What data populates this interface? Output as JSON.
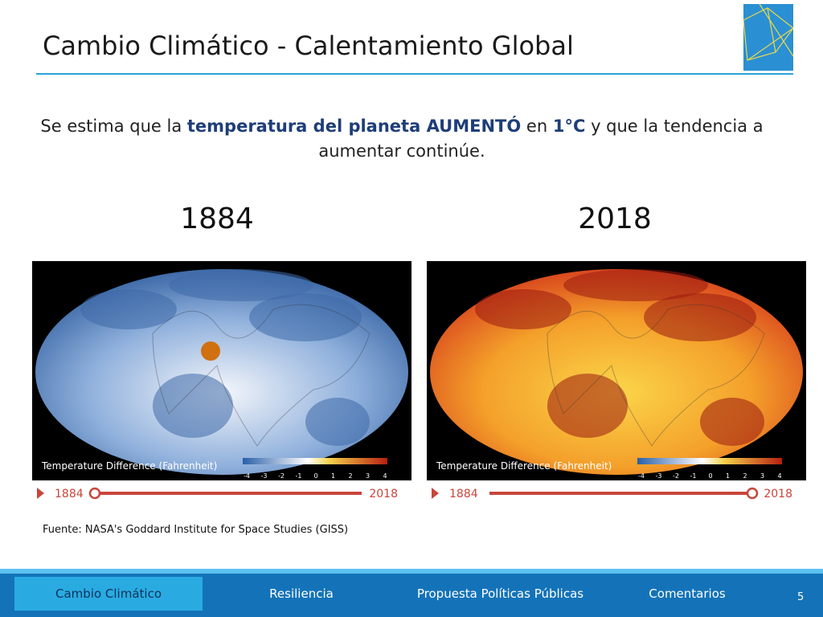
{
  "header": {
    "title": "Cambio Climático - Calentamiento Global"
  },
  "subtitle": {
    "parts": [
      "Se estima que la",
      "temperatura del planeta AUMENTÓ",
      "en",
      "1°C",
      "y que la tendencia a aumentar continúe."
    ]
  },
  "maps": [
    {
      "year": "1884",
      "caption": "Temperature Difference (Fahrenheit)",
      "scale": [
        -4,
        -3,
        -2,
        -1,
        0,
        1,
        2,
        3,
        4
      ],
      "timeline": {
        "start": "1884",
        "end": "2018"
      }
    },
    {
      "year": "2018",
      "caption": "Temperature Difference (Fahrenheit)",
      "scale": [
        -4,
        -3,
        -2,
        -1,
        0,
        1,
        2,
        3,
        4
      ],
      "timeline": {
        "start": "1884",
        "end": "2018"
      }
    }
  ],
  "source": "Fuente: NASA's Goddard Institute for Space Studies (GISS)",
  "nav": {
    "items": [
      "Cambio Climático",
      "Resiliencia",
      "Propuesta Políticas Públicas",
      "Comentarios"
    ],
    "page": "5"
  }
}
